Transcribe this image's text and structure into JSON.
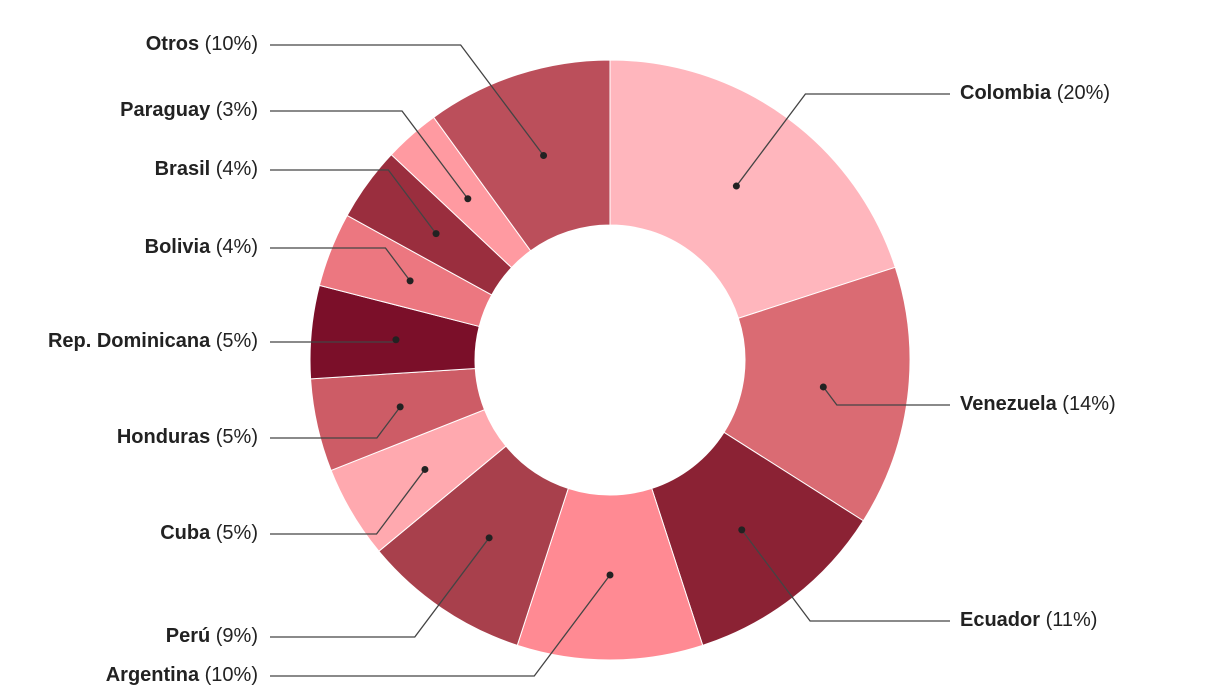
{
  "chart_data": {
    "type": "donut",
    "categories": [
      "Colombia",
      "Venezuela",
      "Ecuador",
      "Argentina",
      "Perú",
      "Cuba",
      "Honduras",
      "Rep. Dominicana",
      "Bolivia",
      "Brasil",
      "Paraguay",
      "Otros"
    ],
    "values": [
      20,
      14,
      11,
      10,
      9,
      5,
      5,
      5,
      4,
      4,
      3,
      10
    ],
    "value_labels": [
      "(20%)",
      "(14%)",
      "(11%)",
      "(10%)",
      "(9%)",
      "(5%)",
      "(5%)",
      "(5%)",
      "(4%)",
      "(4%)",
      "(3%)",
      "(10%)"
    ],
    "colors": [
      "#ffb6bd",
      "#da6b73",
      "#8b2234",
      "#ff8a93",
      "#a8404c",
      "#ffa9af",
      "#cd5c66",
      "#7b0f29",
      "#ec7780",
      "#9a2e3e",
      "#ff9aa1",
      "#bb4f5b"
    ]
  }
}
